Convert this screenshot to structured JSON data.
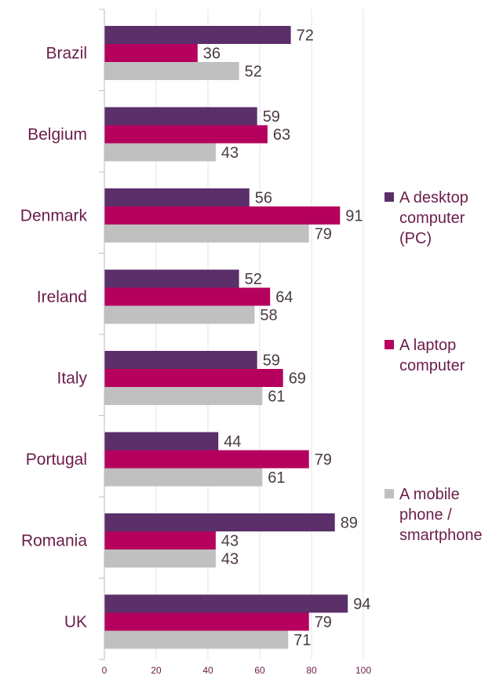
{
  "chart_data": {
    "type": "bar",
    "orientation": "horizontal",
    "categories": [
      "Brazil",
      "Belgium",
      "Denmark",
      "Ireland",
      "Italy",
      "Portugal",
      "Romania",
      "UK"
    ],
    "series": [
      {
        "name": "A desktop computer (PC)",
        "color": "#5b2f6a",
        "values": [
          72,
          59,
          56,
          52,
          59,
          44,
          89,
          94
        ]
      },
      {
        "name": "A laptop computer",
        "color": "#b5005e",
        "values": [
          36,
          63,
          91,
          64,
          69,
          79,
          43,
          79
        ]
      },
      {
        "name": "A mobile phone / smartphone",
        "color": "#c0c0c0",
        "values": [
          52,
          43,
          79,
          58,
          61,
          61,
          43,
          71
        ]
      }
    ],
    "xlim": [
      0,
      100
    ],
    "xticks": [
      0,
      20,
      40,
      60,
      80,
      100
    ],
    "grid": true,
    "legend_position": "right",
    "legend_lines": [
      [
        "A desktop",
        "computer",
        "(PC)"
      ],
      [
        "A laptop",
        "computer"
      ],
      [
        "A mobile",
        "phone /",
        "smartphone"
      ]
    ],
    "title": "",
    "xlabel": "",
    "ylabel": ""
  }
}
